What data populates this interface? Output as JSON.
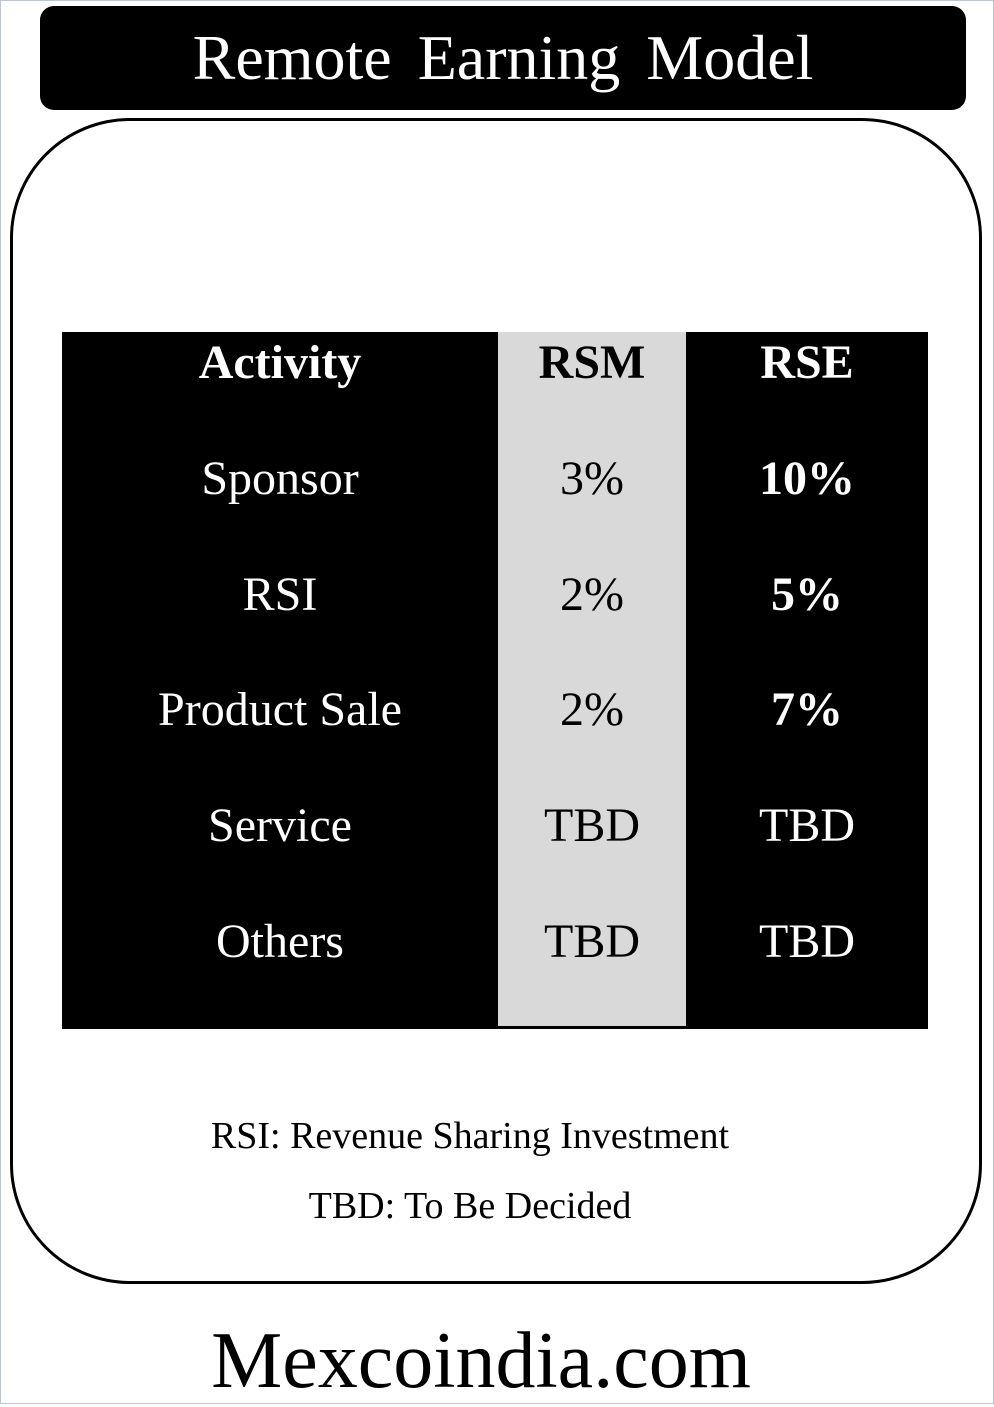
{
  "title": "Remote Earning Model",
  "table": {
    "headers": [
      "Activity",
      "RSM",
      "RSE"
    ],
    "rows": [
      [
        "Sponsor",
        "3%",
        "10%"
      ],
      [
        "RSI",
        "2%",
        "5%"
      ],
      [
        "Product Sale",
        "2%",
        "7%"
      ],
      [
        "Service",
        "TBD",
        "TBD"
      ],
      [
        "Others",
        "TBD",
        "TBD"
      ]
    ]
  },
  "notes": [
    "RSI: Revenue Sharing Investment",
    "TBD: To Be Decided"
  ],
  "footer": "Mexcoindia.com",
  "colors": {
    "dark_fill": "#000000",
    "light_fill": "#d9d9d9",
    "background": "#ffffff"
  }
}
